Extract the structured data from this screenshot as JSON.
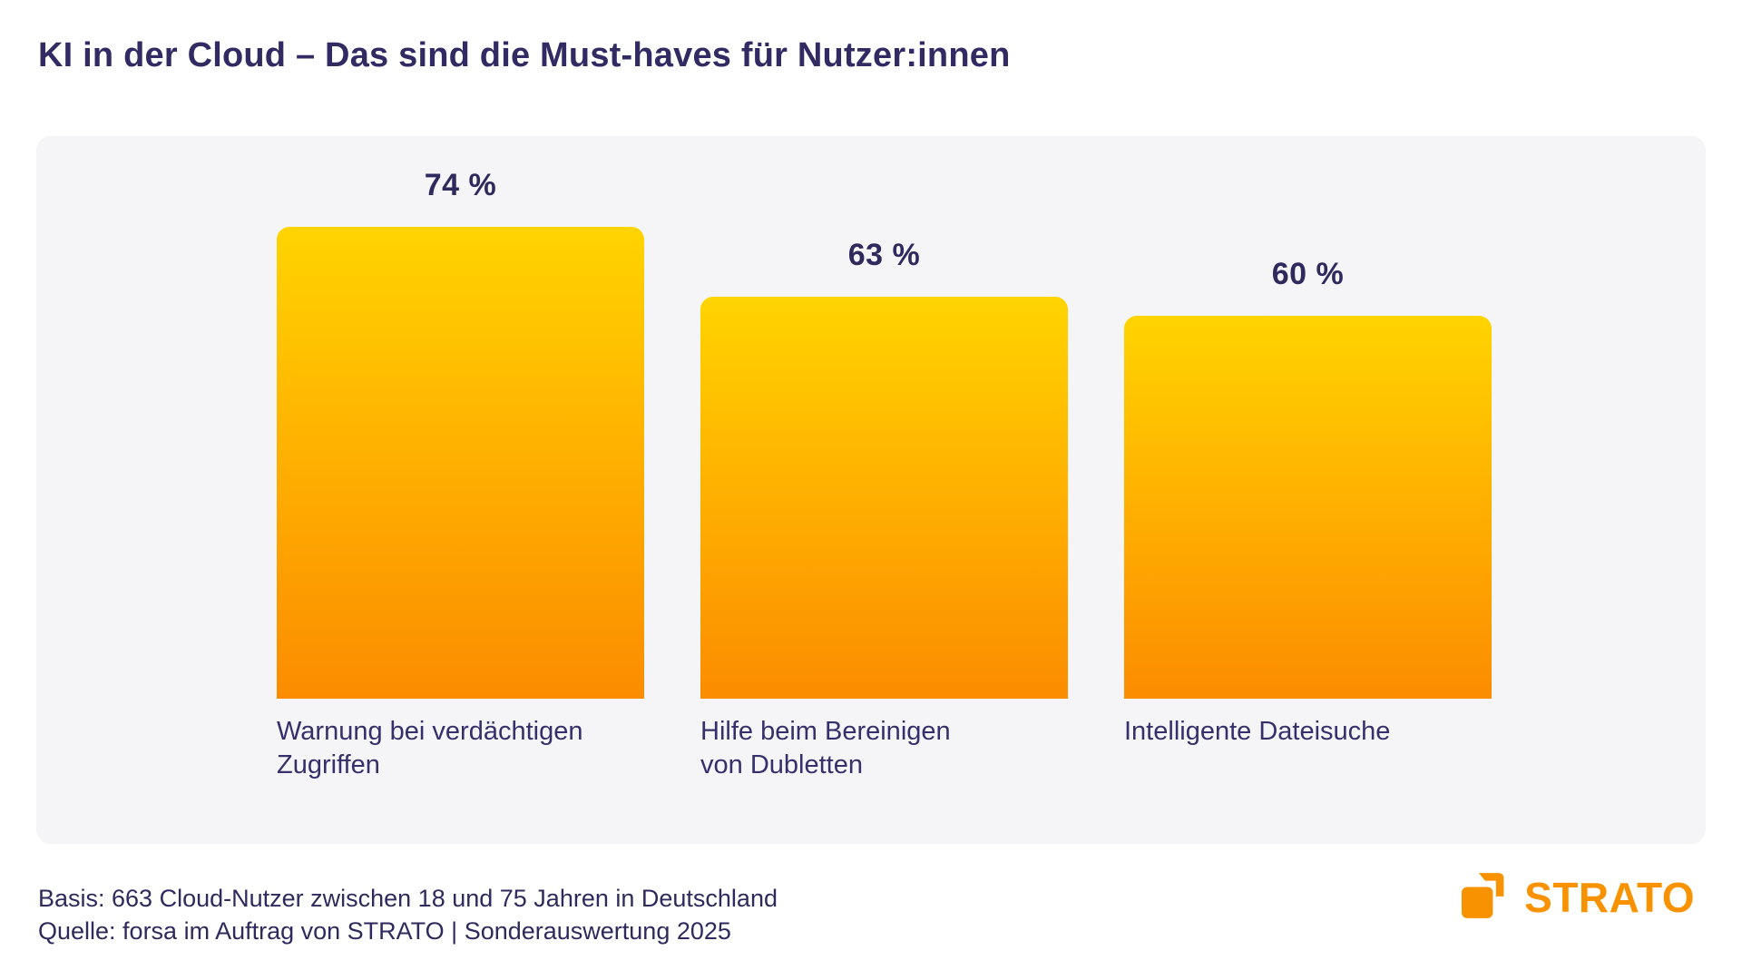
{
  "page": {
    "title": "KI in der Cloud – Das sind die Must-haves für Nutzer:innen"
  },
  "chart_data": {
    "type": "bar",
    "title": "KI in der Cloud – Das sind die Must-haves für Nutzer:innen",
    "categories": [
      "Warnung bei verdächtigen Zugriffen",
      "Hilfe beim Bereinigen von Dubletten",
      "Intelligente Dateisuche"
    ],
    "categories_display": [
      "Warnung bei verdächtigen\nZugriffen",
      "Hilfe beim Bereinigen\nvon Dubletten",
      "Intelligente Dateisuche"
    ],
    "values": [
      74,
      63,
      60
    ],
    "value_labels": [
      "74 %",
      "63 %",
      "60 %"
    ],
    "xlabel": "",
    "ylabel": "",
    "ylim": [
      0,
      100
    ],
    "grid": false,
    "legend": false,
    "bar_gradient_top": "#FFD400",
    "bar_gradient_bottom": "#FB8C00",
    "value_label_color": "#2F2A5E",
    "category_label_color": "#35306B",
    "panel_background": "#F5F5F8"
  },
  "footer": {
    "basis": "Basis: 663 Cloud-Nutzer zwischen 18 und 75 Jahren in Deutschland",
    "quelle": "Quelle: forsa im Auftrag von STRATO | Sonderauswertung 2025"
  },
  "logo": {
    "text": "STRATO",
    "color": "#F99200"
  },
  "colors": {
    "title_navy": "#322B63",
    "strato_orange": "#F99200",
    "page_background": "#FFFFFF"
  }
}
